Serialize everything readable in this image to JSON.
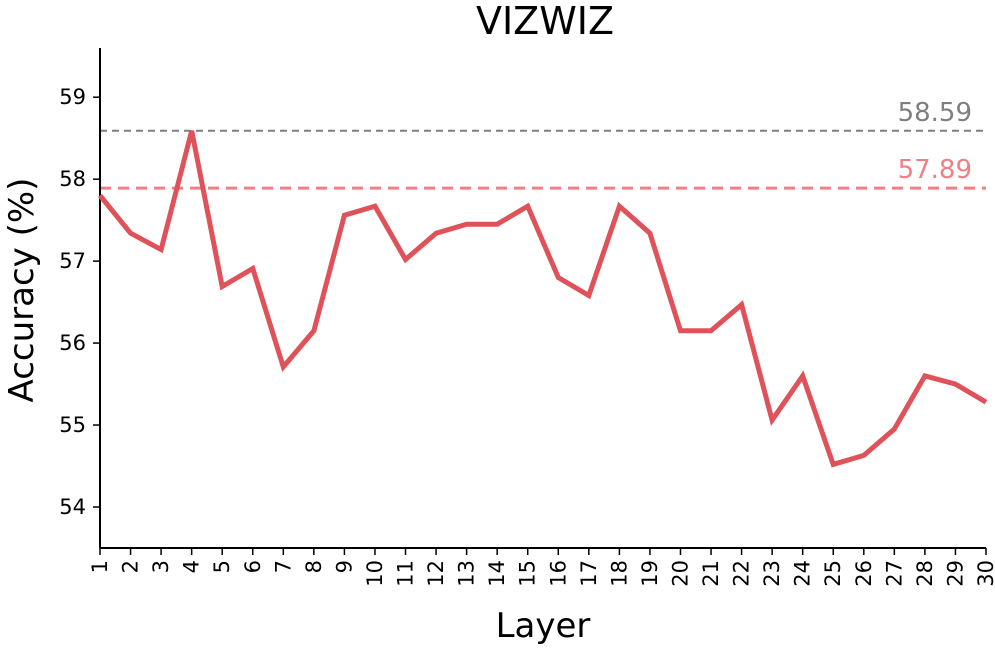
{
  "chart_data": {
    "type": "line",
    "title": "VIZWIZ",
    "xlabel": "Layer",
    "ylabel": "Accuracy (%)",
    "x": [
      1,
      2,
      3,
      4,
      5,
      6,
      7,
      8,
      9,
      10,
      11,
      12,
      13,
      14,
      15,
      16,
      17,
      18,
      19,
      20,
      21,
      22,
      23,
      24,
      25,
      26,
      27,
      28,
      29,
      30
    ],
    "x_ticks": [
      "1",
      "2",
      "3",
      "4",
      "5",
      "6",
      "7",
      "8",
      "9",
      "10",
      "11",
      "12",
      "13",
      "14",
      "15",
      "16",
      "17",
      "18",
      "19",
      "20",
      "21",
      "22",
      "23",
      "24",
      "25",
      "26",
      "27",
      "28",
      "29",
      "30"
    ],
    "y_ticks": [
      "54",
      "55",
      "56",
      "57",
      "58",
      "59"
    ],
    "ylim": [
      53.5,
      59.6
    ],
    "xlim": [
      1,
      30
    ],
    "grid": false,
    "series": [
      {
        "values": [
          57.8,
          57.34,
          57.14,
          58.59,
          56.69,
          56.91,
          55.71,
          56.15,
          57.56,
          57.67,
          57.02,
          57.34,
          57.45,
          57.45,
          57.67,
          56.8,
          56.58,
          57.67,
          57.34,
          56.15,
          56.15,
          56.47,
          55.06,
          55.6,
          54.52,
          54.63,
          54.95,
          55.6,
          55.5,
          55.28
        ],
        "color": "#e05259"
      }
    ],
    "reference_lines": [
      {
        "value": 58.59,
        "label": "58.59",
        "color": "#7f7f7f"
      },
      {
        "value": 57.89,
        "label": "57.89",
        "color": "#f07f84"
      }
    ]
  }
}
